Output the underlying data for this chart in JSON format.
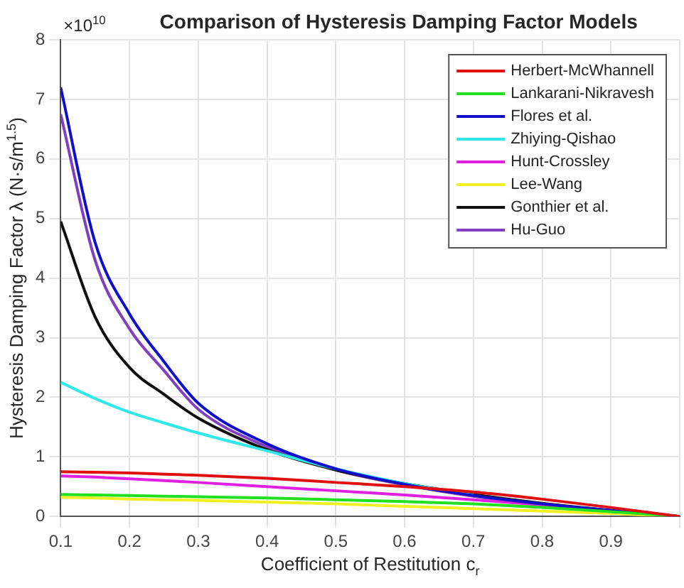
{
  "chart_data": {
    "type": "line",
    "title": "Comparison of Hysteresis Damping Factor Models",
    "xlabel": "Coefficient of Restitution c$_{r}$",
    "ylabel": "Hysteresis Damping Factor λ (N·s/m$^{1.5}$)",
    "annotations": [
      "×10$^{10}$"
    ],
    "x": [
      0.1,
      0.15,
      0.2,
      0.25,
      0.3,
      0.4,
      0.5,
      0.6,
      0.7,
      0.8,
      0.9,
      1.0
    ],
    "xlim": [
      0.1,
      1.0
    ],
    "xticks": [
      0.1,
      0.2,
      0.3,
      0.4,
      0.5,
      0.6,
      0.7,
      0.8,
      0.9,
      {
        "value": 1.0,
        "label": null
      }
    ],
    "ylim": [
      0,
      8
    ],
    "yticks": [
      0,
      1,
      2,
      3,
      4,
      5,
      6,
      7,
      8
    ],
    "grid": true,
    "legend": "top right",
    "marker": "none",
    "line_style": "solid",
    "series": [
      {
        "name": "Herbert-McWhannell",
        "color": "#e01010",
        "values": [
          0.75,
          0.74,
          0.73,
          0.71,
          0.69,
          0.64,
          0.57,
          0.5,
          0.41,
          0.29,
          0.15,
          0
        ]
      },
      {
        "name": "Lankarani-Nikravesh",
        "color": "#20e020",
        "values": [
          0.37,
          0.36,
          0.35,
          0.34,
          0.33,
          0.31,
          0.28,
          0.25,
          0.21,
          0.15,
          0.08,
          0
        ]
      },
      {
        "name": "Flores et al.",
        "color": "#1010c8",
        "values": [
          7.2,
          4.6,
          3.4,
          2.6,
          1.9,
          1.22,
          0.8,
          0.54,
          0.35,
          0.21,
          0.1,
          0
        ]
      },
      {
        "name": "Zhiying-Qishao",
        "color": "#30e8e8",
        "values": [
          2.25,
          1.98,
          1.75,
          1.57,
          1.4,
          1.1,
          0.8,
          0.55,
          0.36,
          null,
          null,
          null
        ]
      },
      {
        "name": "Hunt-Crossley",
        "color": "#e020e0",
        "values": [
          0.68,
          0.66,
          0.63,
          0.6,
          0.57,
          0.5,
          0.43,
          0.36,
          0.28,
          0.19,
          0.1,
          0
        ]
      },
      {
        "name": "Lee-Wang",
        "color": "#f0f020",
        "values": [
          0.32,
          0.31,
          0.29,
          0.28,
          0.27,
          0.24,
          0.21,
          0.17,
          0.13,
          0.09,
          0.05,
          0
        ]
      },
      {
        "name": "Gonthier et al.",
        "color": "#101010",
        "values": [
          4.95,
          3.35,
          2.5,
          2.05,
          1.65,
          1.12,
          0.78,
          0.55,
          0.37,
          0.22,
          0.1,
          0
        ]
      },
      {
        "name": "Hu-Guo",
        "color": "#8040c0",
        "values": [
          6.75,
          4.3,
          3.15,
          2.45,
          1.8,
          1.17,
          0.78,
          0.53,
          0.34,
          0.2,
          0.09,
          0
        ]
      }
    ]
  }
}
